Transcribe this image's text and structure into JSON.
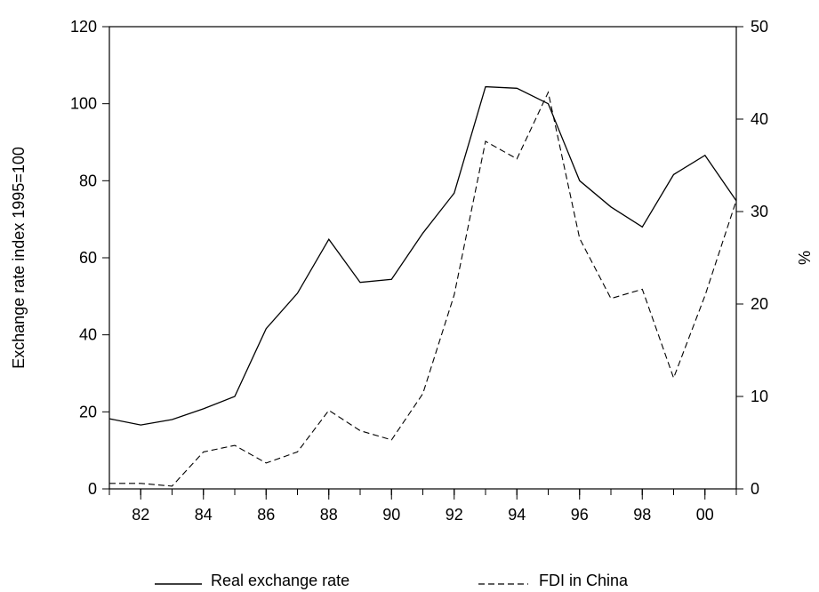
{
  "chart_data": {
    "type": "line",
    "title": "",
    "ylabel_left": "Exchange rate index 1995=100",
    "ylabel_right": "%",
    "x_tick_labels": [
      "82",
      "84",
      "86",
      "88",
      "90",
      "92",
      "94",
      "96",
      "98",
      "00"
    ],
    "y_left_tick_labels": [
      "0",
      "20",
      "40",
      "60",
      "80",
      "100",
      "120"
    ],
    "y_right_tick_labels": [
      "0",
      "10",
      "20",
      "30",
      "40",
      "50"
    ],
    "xlim": [
      1981,
      2001
    ],
    "ylim_left": [
      0,
      120
    ],
    "ylim_right": [
      0,
      50
    ],
    "grid": false,
    "legend_position": "bottom",
    "x": [
      1981,
      1982,
      1983,
      1984,
      1985,
      1986,
      1987,
      1988,
      1989,
      1990,
      1991,
      1992,
      1993,
      1994,
      1995,
      1996,
      1997,
      1998,
      1999,
      2000,
      2001
    ],
    "series": [
      {
        "name": "Real exchange rate",
        "axis": "left",
        "style": "solid",
        "values": [
          18.2,
          16.6,
          18.0,
          20.8,
          24.0,
          41.6,
          50.8,
          64.8,
          53.6,
          54.4,
          66.4,
          76.8,
          104.4,
          104.0,
          100.0,
          80.0,
          73.2,
          68.0,
          81.6,
          86.6,
          74.8
        ]
      },
      {
        "name": "FDI in China",
        "axis": "right",
        "style": "dashed",
        "values": [
          0.6,
          0.6,
          0.3,
          4.0,
          4.7,
          2.8,
          4.0,
          8.5,
          6.3,
          5.3,
          10.3,
          21.0,
          37.6,
          35.7,
          42.9,
          27.1,
          20.6,
          21.6,
          12.0,
          20.9,
          31.2
        ]
      }
    ]
  }
}
